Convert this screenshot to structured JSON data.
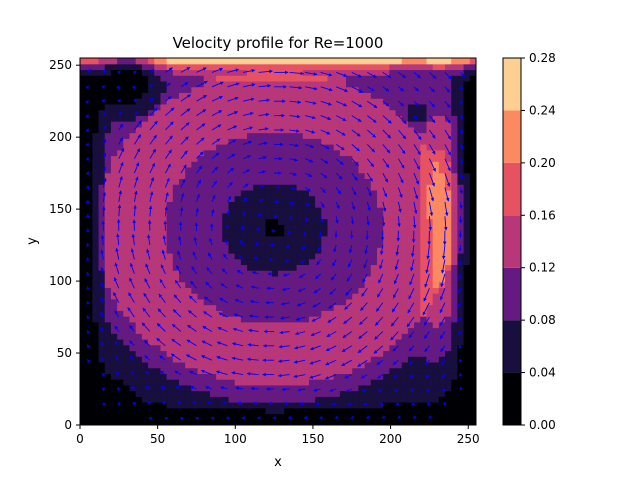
{
  "chart_data": {
    "type": "contour",
    "title": "Velocity profile for Re=1000",
    "xlabel": "x",
    "ylabel": "y",
    "xlim": [
      0,
      255
    ],
    "ylim": [
      0,
      255
    ],
    "x_ticks": [
      0,
      50,
      100,
      150,
      200,
      250
    ],
    "y_ticks": [
      0,
      50,
      100,
      150,
      200,
      250
    ],
    "grid": false,
    "colorbar": {
      "colormap": "magma",
      "levels": [
        0.0,
        0.04,
        0.08,
        0.12,
        0.16,
        0.2,
        0.24,
        0.28
      ],
      "tick_labels": [
        "0.00",
        "0.04",
        "0.08",
        "0.12",
        "0.16",
        "0.20",
        "0.24",
        "0.28"
      ],
      "band_colors": [
        "#000004",
        "#180f3e",
        "#641a80",
        "#b73779",
        "#e75263",
        "#fc8961",
        "#fecf92",
        "#fcfdbf"
      ]
    },
    "field": {
      "description_free": true,
      "vortex_center": [
        125,
        137
      ],
      "quiver_color": "#0000ff",
      "quiver_spacing": 10
    }
  }
}
